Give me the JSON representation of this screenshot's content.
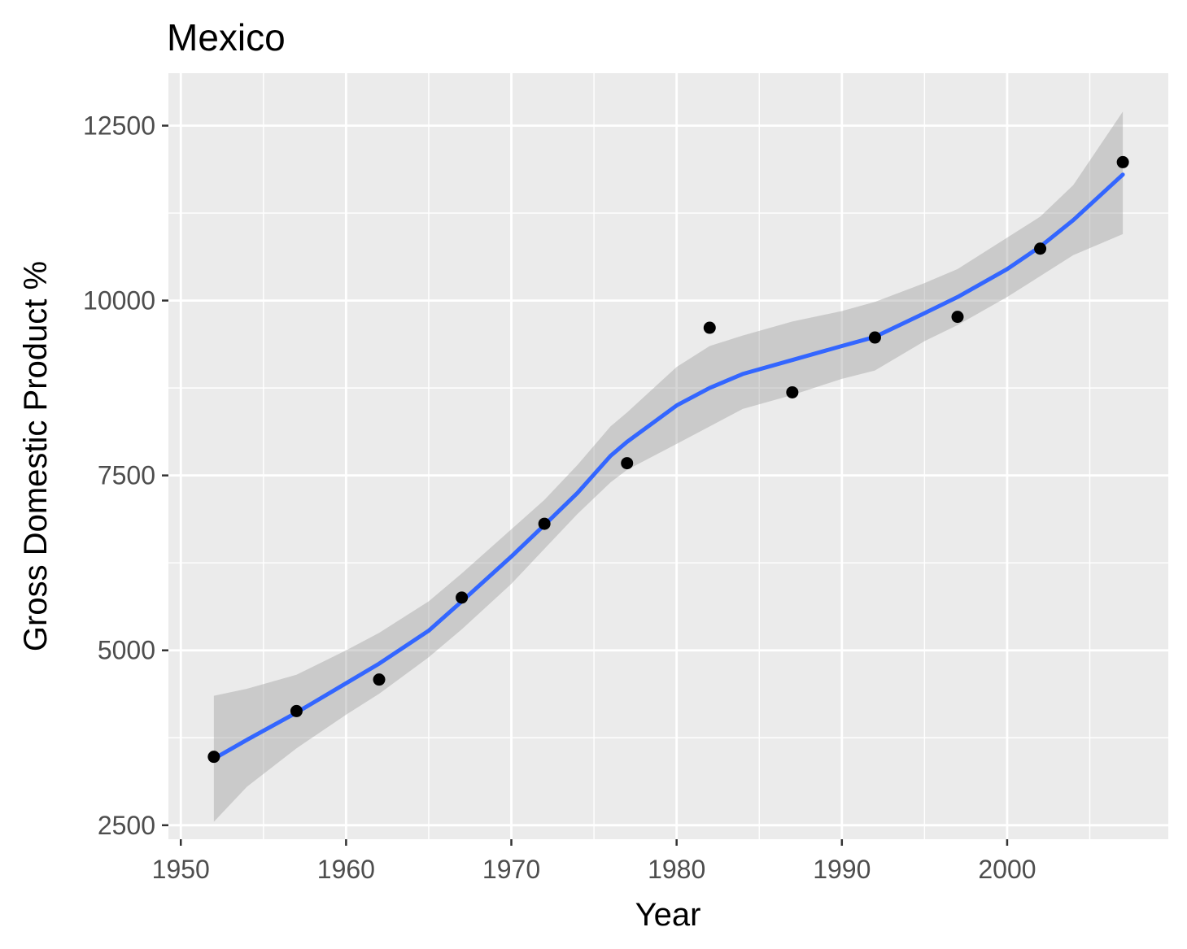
{
  "chart_data": {
    "type": "scatter",
    "title": "Mexico",
    "xlabel": "Year",
    "ylabel": "Gross Domestic Product %",
    "xlim": [
      1949.25,
      2009.75
    ],
    "ylim": [
      2300,
      13250
    ],
    "x_ticks": [
      1950,
      1960,
      1970,
      1980,
      1990,
      2000
    ],
    "x_tick_labels": [
      "1950",
      "1960",
      "1970",
      "1980",
      "1990",
      "2000"
    ],
    "x_minor_ticks": [
      1955,
      1965,
      1975,
      1985,
      1995,
      2005
    ],
    "y_ticks": [
      2500,
      5000,
      7500,
      10000,
      12500
    ],
    "y_tick_labels": [
      "2500",
      "5000",
      "7500",
      "10000",
      "12500"
    ],
    "y_minor_ticks": [
      3750,
      6250,
      8750,
      11250
    ],
    "grid": true,
    "points": {
      "x": [
        1952,
        1957,
        1962,
        1967,
        1972,
        1977,
        1982,
        1987,
        1992,
        1997,
        2002,
        2007
      ],
      "y": [
        3478,
        4132,
        4582,
        5754,
        6809,
        7675,
        9611,
        8688,
        9472,
        9767,
        10742,
        11978
      ]
    },
    "smooth": {
      "method": "loess",
      "x": [
        1952,
        1954,
        1957,
        1960,
        1962,
        1965,
        1967,
        1970,
        1972,
        1974,
        1976,
        1977,
        1980,
        1982,
        1984,
        1987,
        1990,
        1992,
        1995,
        1997,
        2000,
        2002,
        2004,
        2007
      ],
      "y": [
        3450,
        3720,
        4110,
        4530,
        4810,
        5280,
        5700,
        6340,
        6790,
        7250,
        7780,
        7980,
        8500,
        8750,
        8950,
        9150,
        9350,
        9480,
        9820,
        10050,
        10450,
        10770,
        11150,
        11800
      ],
      "lower": [
        2550,
        3050,
        3600,
        4080,
        4380,
        4900,
        5300,
        5950,
        6450,
        6950,
        7400,
        7580,
        7950,
        8200,
        8450,
        8650,
        8880,
        9000,
        9420,
        9650,
        10050,
        10350,
        10650,
        10950
      ],
      "upper": [
        4350,
        4450,
        4650,
        5000,
        5250,
        5700,
        6100,
        6730,
        7150,
        7650,
        8200,
        8400,
        9050,
        9350,
        9500,
        9700,
        9850,
        9980,
        10250,
        10450,
        10900,
        11200,
        11650,
        12700
      ]
    },
    "colors": {
      "panel": "#ebebeb",
      "grid": "#ffffff",
      "point": "#000000",
      "line": "#3366ff",
      "ribbon": "#999999"
    }
  }
}
